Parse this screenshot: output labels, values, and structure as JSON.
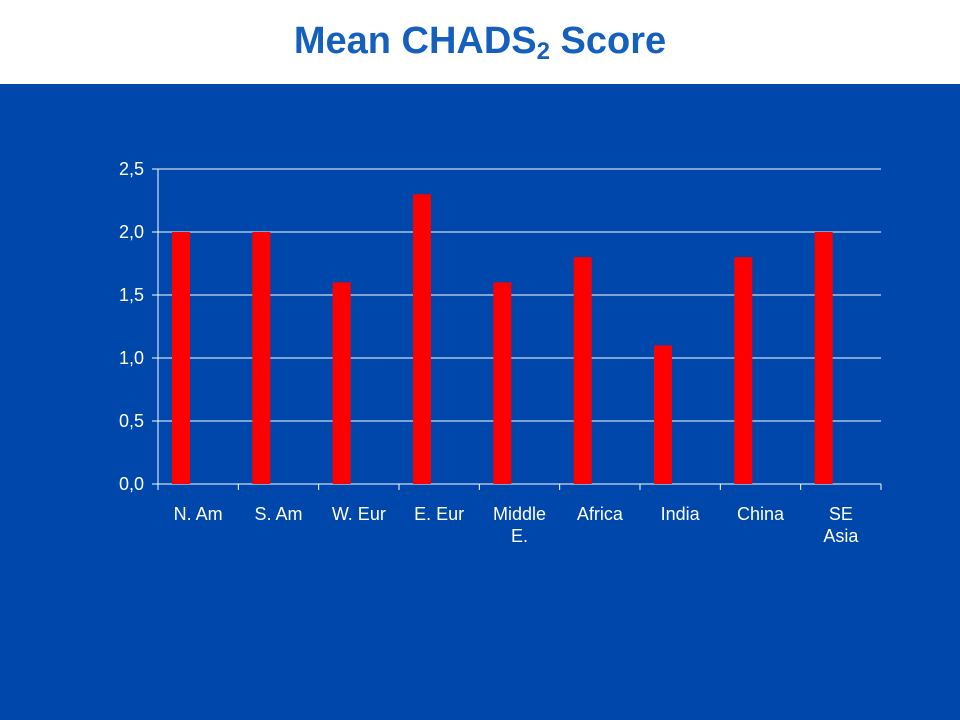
{
  "title": {
    "main": "Mean CHADS",
    "subscript": "2",
    "suffix": " Score"
  },
  "colors": {
    "background": "#0047ab",
    "bar": "#ff0000",
    "axis_text": "#ffffff",
    "gridline": "#ffffff",
    "title": "#1560bd"
  },
  "chart_data": {
    "type": "bar",
    "title": "Mean CHADS2 Score",
    "xlabel": "",
    "ylabel": "",
    "categories": [
      [
        "N. Am"
      ],
      [
        "S. Am"
      ],
      [
        "W. Eur"
      ],
      [
        "E. Eur"
      ],
      [
        "Middle",
        "E."
      ],
      [
        "Africa"
      ],
      [
        "India"
      ],
      [
        "China"
      ],
      [
        "SE",
        "Asia"
      ]
    ],
    "values": [
      2.0,
      2.0,
      1.6,
      2.3,
      1.6,
      1.8,
      1.1,
      1.8,
      2.0
    ],
    "ylim": [
      0,
      2.5
    ],
    "yticks": [
      "0,0",
      "0,5",
      "1,0",
      "1,5",
      "2,0",
      "2,5"
    ],
    "grid": true,
    "legend": "none"
  }
}
